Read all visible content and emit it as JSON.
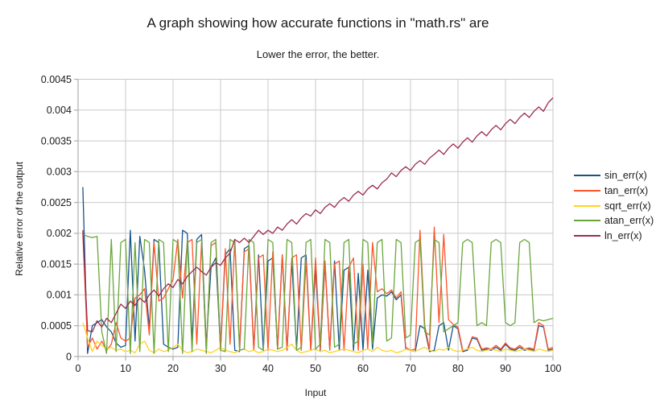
{
  "chart": {
    "title": "A graph showing how accurate functions in \"math.rs\" are",
    "subtitle": "Lower the error, the better.",
    "x_axis_label": "Input",
    "y_axis_label": "Relative error of the output"
  },
  "chart_data": {
    "type": "line",
    "title": "A graph showing how accurate functions in \"math.rs\" are",
    "subtitle": "Lower the error, the better.",
    "xlabel": "Input",
    "ylabel": "Relative error of the output",
    "xlim": [
      0,
      100
    ],
    "ylim": [
      0,
      0.0045
    ],
    "grid": true,
    "legend_position": "right",
    "x_ticks": [
      0,
      10,
      20,
      30,
      40,
      50,
      60,
      70,
      80,
      90,
      100
    ],
    "x_tick_labels": [
      "0",
      "10",
      "20",
      "30",
      "40",
      "50",
      "60",
      "70",
      "80",
      "90",
      "100"
    ],
    "y_ticks": [
      0,
      0.0005,
      0.001,
      0.0015,
      0.002,
      0.0025,
      0.003,
      0.0035,
      0.004,
      0.0045
    ],
    "y_tick_labels": [
      "0",
      "0.0005",
      "0.001",
      "0.0015",
      "0.002",
      "0.0025",
      "0.003",
      "0.0035",
      "0.004",
      "0.0045"
    ],
    "colors": {
      "grid": "#c9c9c9",
      "axis": "#b3b3b3",
      "text": "#1a1a1a"
    },
    "x": [
      1,
      2,
      3,
      4,
      5,
      6,
      7,
      8,
      9,
      10,
      11,
      12,
      13,
      14,
      15,
      16,
      17,
      18,
      19,
      20,
      21,
      22,
      23,
      24,
      25,
      26,
      27,
      28,
      29,
      30,
      31,
      32,
      33,
      34,
      35,
      36,
      37,
      38,
      39,
      40,
      41,
      42,
      43,
      44,
      45,
      46,
      47,
      48,
      49,
      50,
      51,
      52,
      53,
      54,
      55,
      56,
      57,
      58,
      59,
      60,
      61,
      62,
      63,
      64,
      65,
      66,
      67,
      68,
      69,
      70,
      71,
      72,
      73,
      74,
      75,
      76,
      77,
      78,
      79,
      80,
      81,
      82,
      83,
      84,
      85,
      86,
      87,
      88,
      89,
      90,
      91,
      92,
      93,
      94,
      95,
      96,
      97,
      98,
      99,
      100
    ],
    "series": [
      {
        "name": "sin_err(x)",
        "color": "#17548c",
        "values": [
          0.00275,
          5e-05,
          0.0005,
          0.00055,
          0.0006,
          0.00048,
          0.0004,
          0.00022,
          0.00015,
          0.00018,
          0.00205,
          0.00025,
          0.00195,
          0.0014,
          0.00045,
          0.0019,
          0.00185,
          0.0002,
          0.00015,
          0.00012,
          0.00015,
          0.00205,
          0.002,
          0.00025,
          0.0019,
          0.00198,
          0.00018,
          0.00145,
          0.0016,
          0.00012,
          0.00165,
          0.00175,
          0.0001,
          8e-05,
          0.00175,
          0.0018,
          0.00012,
          0.00165,
          0.0001,
          0.00155,
          0.0016,
          0.00012,
          0.00165,
          0.0001,
          0.00155,
          0.00012,
          0.0016,
          0.00165,
          0.0001,
          0.00145,
          0.0001,
          0.0015,
          0.00012,
          0.00155,
          0.0001,
          0.0014,
          0.00145,
          0.0001,
          0.00135,
          0.0001,
          0.0014,
          0.00012,
          0.00095,
          0.001,
          0.00098,
          0.00105,
          0.00092,
          0.001,
          0.00012,
          0.0001,
          8e-05,
          0.0005,
          0.00045,
          8e-05,
          0.0001,
          0.0005,
          0.00055,
          0.0001,
          0.0005,
          0.00045,
          8e-05,
          0.0001,
          0.0003,
          0.00028,
          0.0001,
          0.00012,
          0.0001,
          0.00015,
          0.0001,
          0.0002,
          0.00012,
          0.0001,
          0.00015,
          0.0001,
          0.00012,
          0.0001,
          0.0005,
          0.00048,
          0.0001,
          0.00012
        ]
      },
      {
        "name": "tan_err(x)",
        "color": "#ff5429",
        "values": [
          0.002,
          0.00015,
          0.0003,
          0.00012,
          0.00025,
          0.0001,
          0.0002,
          0.00055,
          0.0003,
          0.00025,
          0.0003,
          0.00095,
          0.001,
          0.0011,
          0.00035,
          0.00185,
          0.0009,
          0.00095,
          0.0011,
          0.00125,
          0.0019,
          0.00095,
          0.00185,
          0.0019,
          0.0002,
          0.00185,
          0.0001,
          0.0018,
          0.00185,
          0.0001,
          0.00175,
          0.0002,
          0.0019,
          0.00015,
          0.0017,
          0.00175,
          0.0001,
          0.0016,
          0.00165,
          0.0001,
          0.0017,
          0.00012,
          0.00165,
          0.0001,
          0.0016,
          0.00165,
          0.0001,
          0.00155,
          0.0001,
          0.0016,
          0.00012,
          0.00155,
          0.0001,
          0.0015,
          0.00155,
          0.0001,
          0.00145,
          0.0016,
          0.0001,
          0.0015,
          0.00012,
          0.00185,
          0.00105,
          0.0011,
          0.00102,
          0.00108,
          0.00095,
          0.00105,
          0.00015,
          0.0001,
          0.00012,
          0.00205,
          0.0005,
          0.00012,
          0.0021,
          0.00055,
          0.00198,
          0.0006,
          0.00052,
          0.00048,
          0.0001,
          0.00012,
          0.00032,
          0.0003,
          0.00012,
          0.00014,
          0.00012,
          0.00018,
          0.00012,
          0.00022,
          0.00014,
          0.00012,
          0.00018,
          0.00012,
          0.00014,
          0.00012,
          0.00055,
          0.0005,
          0.00012,
          0.00015
        ]
      },
      {
        "name": "sqrt_err(x)",
        "color": "#ffd320",
        "values": [
          0.00055,
          0.0003,
          8e-05,
          0.00025,
          0.00018,
          0.00012,
          0.00015,
          0.0001,
          0.00012,
          8e-05,
          0.0001,
          6e-05,
          0.0002,
          0.00025,
          0.0001,
          6e-05,
          0.00012,
          8e-05,
          0.0001,
          0.00015,
          0.0002,
          0.0001,
          6e-05,
          8e-05,
          0.00012,
          0.0001,
          8e-05,
          6e-05,
          0.0001,
          0.00015,
          0.0001,
          8e-05,
          6e-05,
          0.0001,
          0.00012,
          8e-05,
          0.0001,
          6e-05,
          8e-05,
          0.00012,
          0.0001,
          8e-05,
          0.0001,
          0.00015,
          0.0002,
          0.0001,
          6e-05,
          8e-05,
          0.0001,
          0.00012,
          8e-05,
          0.0001,
          6e-05,
          8e-05,
          0.0001,
          0.00012,
          0.0001,
          8e-05,
          6e-05,
          0.0001,
          0.00012,
          8e-05,
          0.00015,
          0.0001,
          8e-05,
          0.0001,
          6e-05,
          8e-05,
          0.00012,
          0.0001,
          8e-05,
          0.00012,
          0.00015,
          0.0001,
          8e-05,
          0.00012,
          0.0001,
          0.00015,
          0.0001,
          8e-05,
          0.0001,
          0.00012,
          0.00015,
          0.0001,
          8e-05,
          0.0001,
          0.00012,
          0.0001,
          8e-05,
          0.00012,
          0.0001,
          8e-05,
          0.0001,
          0.00012,
          0.0001,
          8e-05,
          0.00012,
          0.0001,
          8e-05,
          0.0001
        ]
      },
      {
        "name": "atan_err(x)",
        "color": "#6aa63c",
        "values": [
          0.00198,
          0.00195,
          0.00193,
          0.00195,
          0.0004,
          5e-05,
          0.0019,
          8e-05,
          0.00185,
          0.0019,
          5e-05,
          0.00185,
          8e-05,
          0.0019,
          0.00185,
          5e-05,
          0.0019,
          0.00185,
          8e-05,
          0.0019,
          0.00185,
          5e-05,
          0.0019,
          8e-05,
          0.00185,
          0.0019,
          5e-05,
          0.00185,
          0.0019,
          0.0001,
          8e-05,
          0.0019,
          0.00185,
          0.0001,
          0.00012,
          0.0019,
          0.00185,
          0.00015,
          0.0001,
          0.0019,
          0.00185,
          0.00012,
          0.00015,
          0.0019,
          0.00185,
          0.0001,
          0.00015,
          0.00185,
          0.0019,
          0.00012,
          0.0002,
          0.0019,
          0.00185,
          0.00015,
          0.0002,
          0.00185,
          0.0019,
          0.0002,
          0.00025,
          0.0019,
          0.00185,
          0.0002,
          0.00185,
          0.0019,
          0.00025,
          0.0003,
          0.0019,
          0.00185,
          0.0003,
          0.00035,
          0.00185,
          0.0019,
          0.0004,
          0.00035,
          0.0019,
          0.00185,
          0.0004,
          0.00045,
          0.0005,
          0.00055,
          0.00185,
          0.0019,
          0.00185,
          0.0005,
          0.00055,
          0.0005,
          0.00185,
          0.0019,
          0.00185,
          0.00055,
          0.0005,
          0.00055,
          0.00185,
          0.0019,
          0.00185,
          0.00055,
          0.0006,
          0.00058,
          0.0006,
          0.00062
        ]
      },
      {
        "name": "ln_err(x)",
        "color": "#9b2d50",
        "values": [
          0.00205,
          0.00042,
          0.0004,
          0.00058,
          0.00048,
          0.00062,
          0.00055,
          0.0007,
          0.00085,
          0.00078,
          0.0009,
          0.00083,
          0.00095,
          0.00088,
          0.001,
          0.00108,
          0.00098,
          0.0011,
          0.00118,
          0.00112,
          0.00125,
          0.00118,
          0.0013,
          0.00138,
          0.00145,
          0.00138,
          0.00132,
          0.00145,
          0.00152,
          0.00148,
          0.0016,
          0.00168,
          0.0019,
          0.00185,
          0.00192,
          0.00185,
          0.00195,
          0.00205,
          0.00198,
          0.00205,
          0.002,
          0.0021,
          0.00205,
          0.00215,
          0.00222,
          0.00215,
          0.00225,
          0.00232,
          0.00228,
          0.00238,
          0.00232,
          0.00242,
          0.00248,
          0.00242,
          0.00252,
          0.00258,
          0.00252,
          0.00262,
          0.00268,
          0.00262,
          0.00272,
          0.00278,
          0.00272,
          0.00282,
          0.00288,
          0.00298,
          0.00292,
          0.00302,
          0.00308,
          0.00302,
          0.00312,
          0.00318,
          0.00312,
          0.00322,
          0.00328,
          0.00335,
          0.00328,
          0.00338,
          0.00345,
          0.00338,
          0.00348,
          0.00355,
          0.00348,
          0.00358,
          0.00365,
          0.00358,
          0.00368,
          0.00375,
          0.00368,
          0.00378,
          0.00385,
          0.00378,
          0.00388,
          0.00395,
          0.00388,
          0.00398,
          0.00405,
          0.00398,
          0.00412,
          0.0042
        ]
      }
    ]
  }
}
